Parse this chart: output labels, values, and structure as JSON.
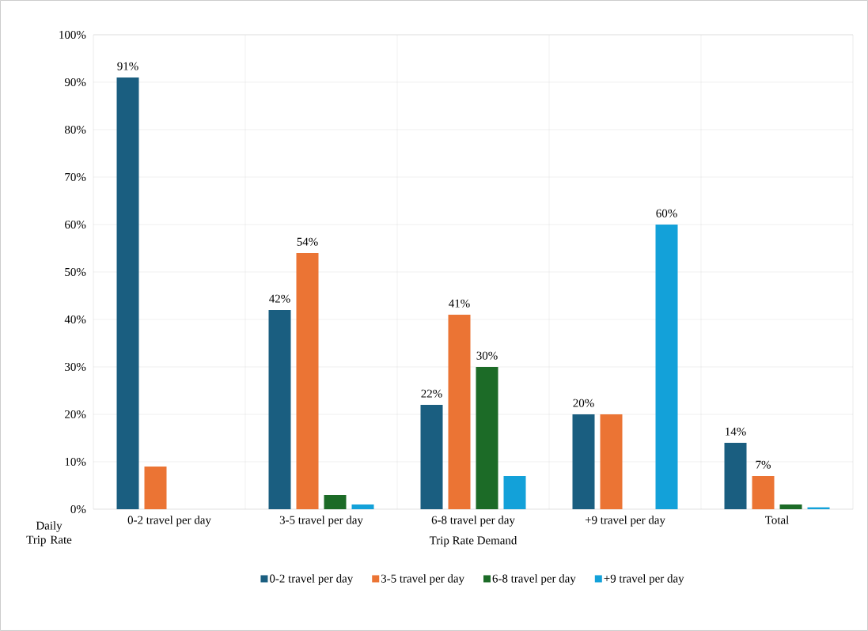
{
  "chart_data": {
    "type": "bar",
    "xlabel": "Trip Rate Demand",
    "categories": [
      "0-2 travel per day",
      "3-5 travel per day",
      "6-8 travel per day",
      "+9 travel per day",
      "Total"
    ],
    "series": [
      {
        "name": "0-2 travel per day",
        "color": "#1a5e80",
        "values": [
          91,
          42,
          22,
          20,
          14
        ],
        "value_labels": [
          "91%",
          "42%",
          "22%",
          "20%",
          "14%"
        ]
      },
      {
        "name": "3-5 travel per day",
        "color": "#eb7434",
        "values": [
          9,
          54,
          41,
          20,
          7
        ],
        "value_labels": [
          null,
          "54%",
          "41%",
          null,
          "7%"
        ]
      },
      {
        "name": "6-8 travel per day",
        "color": "#1c6b27",
        "values": [
          0,
          3,
          30,
          0,
          1
        ],
        "value_labels": [
          null,
          null,
          "30%",
          null,
          null
        ]
      },
      {
        "name": "+9 travel per day",
        "color": "#13a1d9",
        "values": [
          0,
          1,
          7,
          60,
          0.4
        ],
        "value_labels": [
          null,
          null,
          null,
          "60%",
          null
        ]
      }
    ],
    "ylim": [
      0,
      100
    ],
    "yticks": [
      {
        "value": 0,
        "label": "0%"
      },
      {
        "value": 10,
        "label": "10%"
      },
      {
        "value": 20,
        "label": "20%"
      },
      {
        "value": 30,
        "label": "30%"
      },
      {
        "value": 40,
        "label": "40%"
      },
      {
        "value": 50,
        "label": "50%"
      },
      {
        "value": 60,
        "label": "60%"
      },
      {
        "value": 70,
        "label": "70%"
      },
      {
        "value": 80,
        "label": "80%"
      },
      {
        "value": 90,
        "label": "90%"
      },
      {
        "value": 100,
        "label": "100%"
      }
    ],
    "grid": true,
    "legend": "bottom",
    "annotations": [
      "Daily Trip Rate"
    ]
  }
}
